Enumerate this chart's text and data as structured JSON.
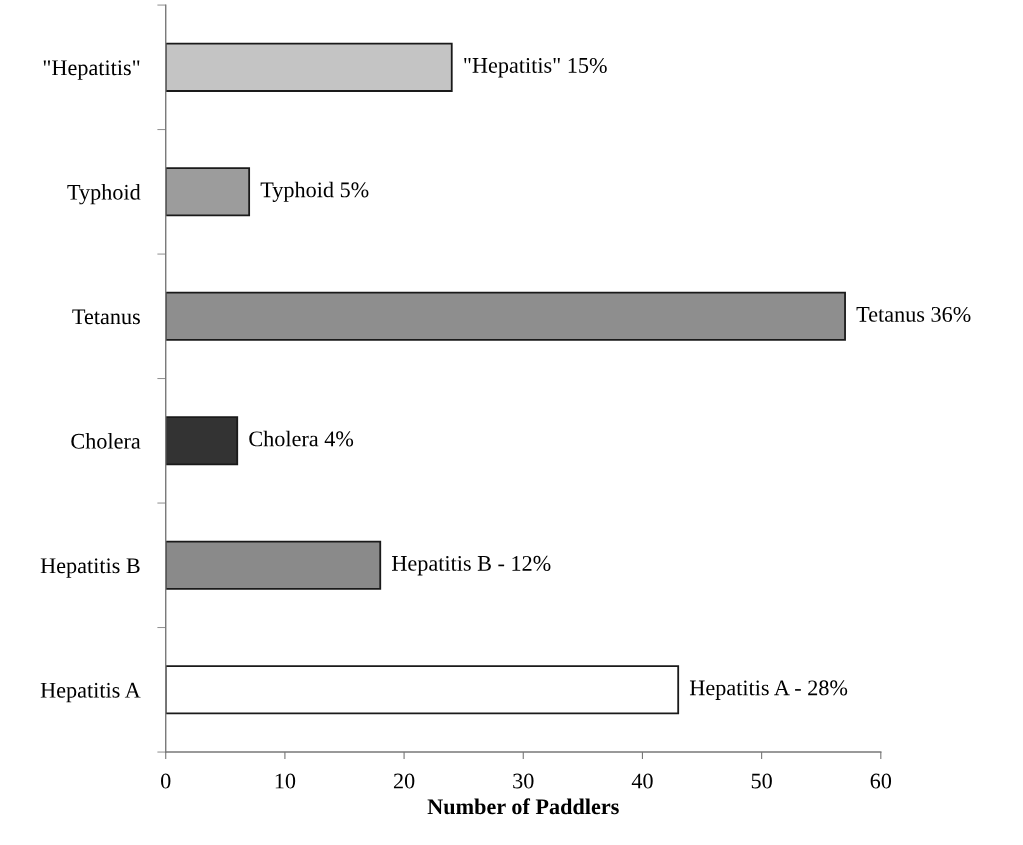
{
  "chart_data": {
    "type": "bar",
    "orientation": "horizontal",
    "categories": [
      "\"Hepatitis\"",
      "Typhoid",
      "Tetanus",
      "Cholera",
      "Hepatitis B",
      "Hepatitis A"
    ],
    "values": [
      24,
      7,
      57,
      6,
      18,
      43
    ],
    "colors": [
      "#c4c4c4",
      "#9c9c9c",
      "#8e8e8e",
      "#333333",
      "#8a8a8a",
      "#ffffff"
    ],
    "annotations": [
      {
        "text": "\"Hepatitis\" 15%",
        "x": 24,
        "y": "\"Hepatitis\""
      },
      {
        "text": "Typhoid 5%",
        "x": 7,
        "y": "Typhoid"
      },
      {
        "text": "Tetanus 36%",
        "x": 57,
        "y": "Tetanus"
      },
      {
        "text": "Cholera 4%",
        "x": 6,
        "y": "Cholera"
      },
      {
        "text": "Hepatitis B - 12%",
        "x": 18,
        "y": "Hepatitis B"
      },
      {
        "text": "Hepatitis A - 28%",
        "x": 43,
        "y": "Hepatitis A"
      }
    ],
    "xlabel": "Number of Paddlers",
    "xlim": [
      0,
      60
    ],
    "xticks": [
      0,
      10,
      20,
      30,
      40,
      50,
      60
    ],
    "grid": false
  }
}
